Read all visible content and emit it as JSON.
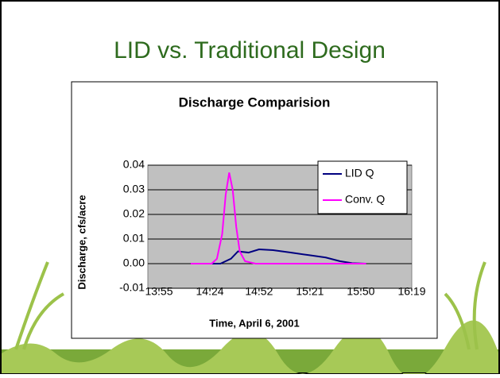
{
  "slide_title": "LID vs. Traditional Design",
  "chart_data": {
    "type": "line",
    "title": "Discharge Comparision",
    "x_label": "Time, April 6, 2001",
    "y_label": "Discharge,  cfs/acre",
    "xlim": [
      "13:55",
      "16:19"
    ],
    "xticks": [
      "13:55",
      "14:24",
      "14:52",
      "15:21",
      "15:50",
      "16:19"
    ],
    "ylim": [
      -0.01,
      0.04
    ],
    "yticks": [
      -0.01,
      {
        "value": 0,
        "label": "0.00"
      },
      0.01,
      0.02,
      0.03,
      0.04
    ],
    "grid": true,
    "legend": "upper right",
    "series": [
      {
        "name": "LID Q",
        "color": "#000080",
        "x": [
          "14:13",
          "14:30",
          "14:36",
          "14:40",
          "14:46",
          "14:52",
          "15:00",
          "15:10",
          "15:20",
          "15:30",
          "15:38",
          "15:45",
          "15:53"
        ],
        "values": [
          0,
          0,
          0.002,
          0.005,
          0.0045,
          0.0058,
          0.0055,
          0.0045,
          0.0035,
          0.0025,
          0.001,
          0.0002,
          0
        ]
      },
      {
        "name": "Conv. Q",
        "color": "#ff00ff",
        "x": [
          "14:13",
          "14:25",
          "14:28",
          "14:31",
          "14:33",
          "14:35",
          "14:37",
          "14:39",
          "14:41",
          "14:44",
          "14:50",
          "15:53"
        ],
        "values": [
          0,
          0,
          0.002,
          0.012,
          0.028,
          0.037,
          0.03,
          0.015,
          0.005,
          0.001,
          0,
          0
        ]
      }
    ]
  }
}
